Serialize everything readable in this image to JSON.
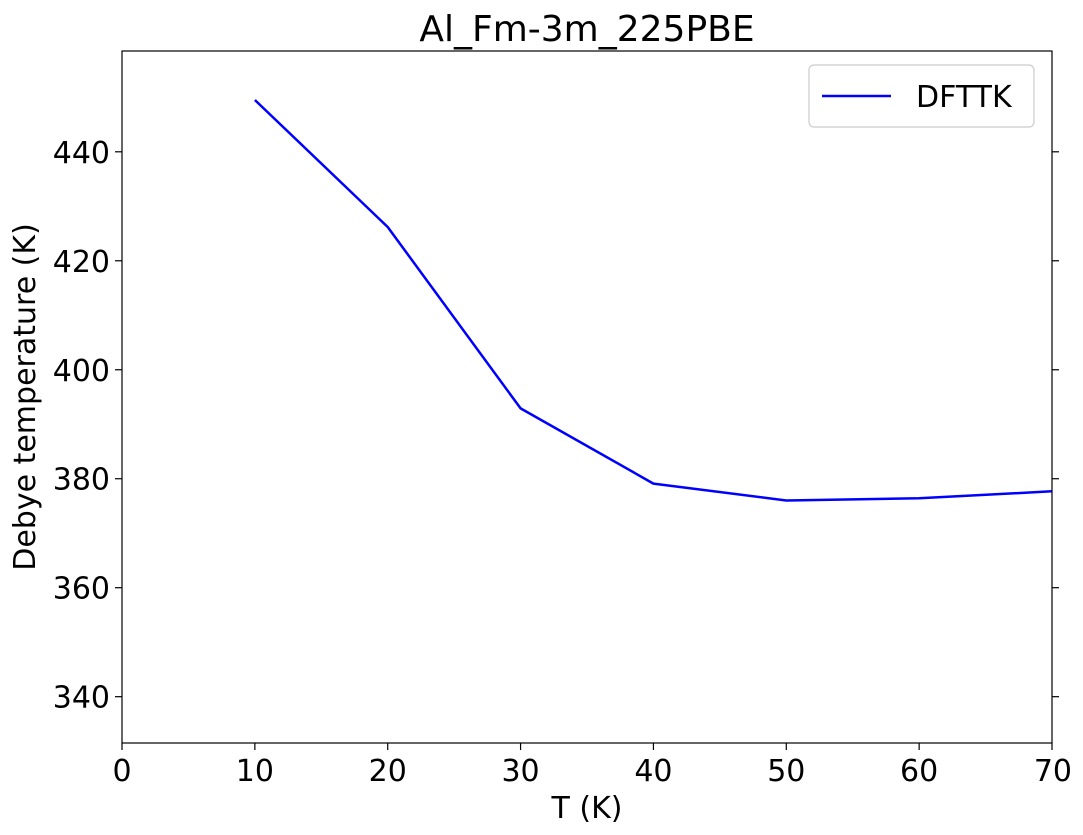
{
  "chart_data": {
    "type": "line",
    "title": "Al_Fm-3m_225PBE",
    "xlabel": "T (K)",
    "ylabel": "Debye temperature (K)",
    "xlim": [
      0,
      70
    ],
    "ylim": [
      331.5,
      458.5
    ],
    "xticks": [
      0,
      10,
      20,
      30,
      40,
      50,
      60,
      70
    ],
    "yticks": [
      340,
      360,
      380,
      400,
      420,
      440
    ],
    "xtick_labels": [
      "0",
      "10",
      "20",
      "30",
      "40",
      "50",
      "60",
      "70"
    ],
    "ytick_labels": [
      "340",
      "360",
      "380",
      "400",
      "420",
      "440"
    ],
    "grid": false,
    "legend_position": "top-right",
    "series": [
      {
        "name": "DFTTK",
        "color": "#0000ff",
        "x": [
          10,
          20,
          30,
          40,
          50,
          60,
          70
        ],
        "y": [
          449.5,
          426.2,
          392.9,
          379.1,
          376.0,
          376.4,
          377.7
        ]
      }
    ]
  }
}
